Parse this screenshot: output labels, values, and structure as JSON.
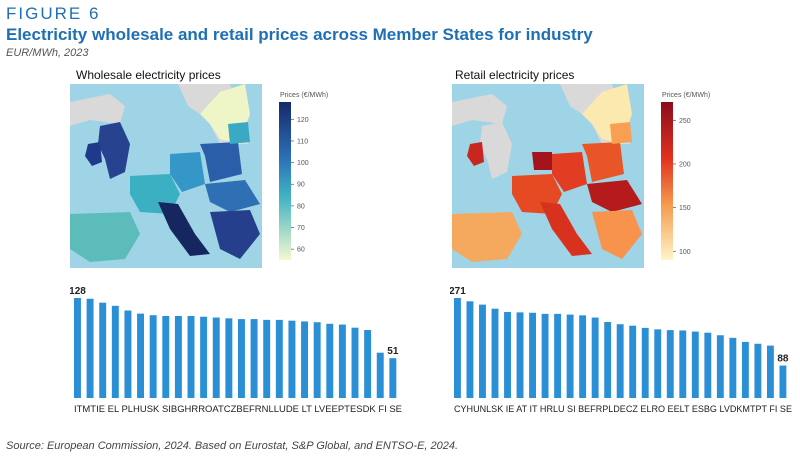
{
  "figure_label": "FIGURE 6",
  "title": "Electricity wholesale and retail prices across Member States for industry",
  "subtitle": "EUR/MWh, 2023",
  "source": "Source: European Commission, 2024. Based on Eurostat, S&P Global, and ENTSO-E, 2024.",
  "colors": {
    "bar": "#2b8fd6",
    "title": "#1f6fb5",
    "sea": "#9fd3e6",
    "land_grey": "#d9d9d9"
  },
  "chart_data": [
    {
      "type": "bar",
      "title": "Wholesale electricity prices",
      "colorbar_label": "Prices (€/MWh)",
      "colorbar_ticks": [
        120,
        110,
        100,
        90,
        80,
        70,
        60
      ],
      "colorbar_range": [
        55,
        128
      ],
      "colorscale": "blue",
      "categories": [
        "IT",
        "MT",
        "IE",
        "EL",
        "PL",
        "HU",
        "SK",
        "SI",
        "BG",
        "HR",
        "RO",
        "AT",
        "CZ",
        "BE",
        "FR",
        "NL",
        "LU",
        "DE",
        "LT",
        "LV",
        "EE",
        "PT",
        "ES",
        "DK",
        "FI",
        "SE"
      ],
      "category_label_text": "ITMTIE EL PLHUSK SIBGHRROATCZBEFRNLLUDE LT LVEEPTESDK FI SE",
      "values": [
        128,
        127,
        122,
        118,
        112,
        108,
        106,
        105,
        105,
        105,
        104,
        103,
        102,
        101,
        101,
        100,
        100,
        99,
        98,
        97,
        95,
        94,
        90,
        87,
        58,
        51
      ],
      "data_labels": [
        {
          "index": 0,
          "text": "128"
        },
        {
          "index": 25,
          "text": "51"
        }
      ]
    },
    {
      "type": "bar",
      "title": "Retail electricity prices",
      "colorbar_label": "Prices (€/MWh)",
      "colorbar_ticks": [
        250,
        200,
        150,
        100
      ],
      "colorbar_range": [
        90,
        271
      ],
      "colorscale": "red",
      "categories": [
        "CY",
        "HU",
        "NL",
        "SK",
        "IE",
        "AT",
        "IT",
        "HR",
        "LU",
        "SI",
        "BE",
        "FR",
        "PL",
        "DE",
        "CZ",
        "EL",
        "RO",
        "EE",
        "LT",
        "ES",
        "BG",
        "LV",
        "DK",
        "MT",
        "PT",
        "FI",
        "SE"
      ],
      "category_label_text": "CYHUNLSK IE AT IT HRLU SI BEFRPLDECZ ELRO EELT ESBG LVDKMTPT FI SE",
      "values": [
        271,
        262,
        253,
        242,
        233,
        232,
        231,
        228,
        228,
        226,
        224,
        218,
        206,
        200,
        196,
        190,
        186,
        184,
        183,
        180,
        177,
        170,
        163,
        152,
        147,
        142,
        88
      ],
      "data_labels": [
        {
          "index": 0,
          "text": "271"
        },
        {
          "index": 26,
          "text": "88"
        }
      ]
    }
  ]
}
